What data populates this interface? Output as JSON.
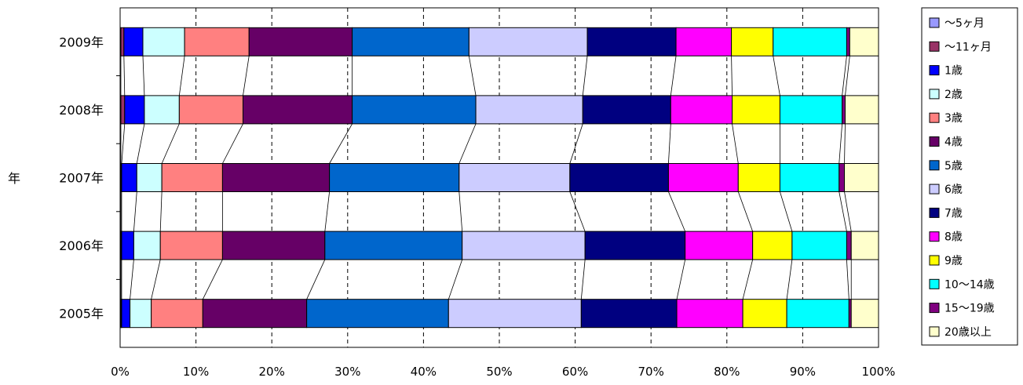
{
  "chart_data": {
    "type": "bar",
    "orientation": "horizontal",
    "stacked": "percent",
    "title": "",
    "xlabel": "",
    "ylabel": "年",
    "xlim": [
      0,
      100
    ],
    "x_ticks": [
      "0%",
      "10%",
      "20%",
      "30%",
      "40%",
      "50%",
      "60%",
      "70%",
      "80%",
      "90%",
      "100%"
    ],
    "grid": "vertical-dashed",
    "legend_position": "right",
    "categories": [
      "2009年",
      "2008年",
      "2007年",
      "2006年",
      "2005年"
    ],
    "series": [
      {
        "name": "～5ヶ月",
        "color": "#9999FF",
        "values": [
          0.1,
          0.1,
          0.1,
          0.1,
          0.1
        ]
      },
      {
        "name": "～11ヶ月",
        "color": "#993366",
        "values": [
          0.4,
          0.5,
          0.1,
          0.1,
          0.1
        ]
      },
      {
        "name": "1歳",
        "color": "#0000FF",
        "values": [
          2.5,
          2.6,
          2.0,
          1.6,
          1.1
        ]
      },
      {
        "name": "2歳",
        "color": "#CCFFFF",
        "values": [
          5.5,
          4.6,
          3.3,
          3.5,
          2.8
        ]
      },
      {
        "name": "3歳",
        "color": "#FF8080",
        "values": [
          8.5,
          8.4,
          8.0,
          8.2,
          6.8
        ]
      },
      {
        "name": "4歳",
        "color": "#660066",
        "values": [
          13.6,
          14.4,
          14.1,
          13.5,
          13.7
        ]
      },
      {
        "name": "5歳",
        "color": "#0066CC",
        "values": [
          15.4,
          16.3,
          17.1,
          18.1,
          18.7
        ]
      },
      {
        "name": "6歳",
        "color": "#CCCCFF",
        "values": [
          15.6,
          14.1,
          14.6,
          16.2,
          17.5
        ]
      },
      {
        "name": "7歳",
        "color": "#000080",
        "values": [
          11.7,
          11.6,
          13.0,
          13.2,
          12.6
        ]
      },
      {
        "name": "8歳",
        "color": "#FF00FF",
        "values": [
          7.3,
          8.1,
          9.2,
          8.9,
          8.7
        ]
      },
      {
        "name": "9歳",
        "color": "#FFFF00",
        "values": [
          5.5,
          6.3,
          5.5,
          5.2,
          5.8
        ]
      },
      {
        "name": "10～14歳",
        "color": "#00FFFF",
        "values": [
          9.7,
          8.2,
          7.8,
          7.2,
          8.2
        ]
      },
      {
        "name": "15～19歳",
        "color": "#800080",
        "values": [
          0.4,
          0.4,
          0.7,
          0.6,
          0.3
        ]
      },
      {
        "name": "20歳以上",
        "color": "#FFFFCC",
        "values": [
          3.8,
          4.4,
          4.5,
          3.6,
          3.6
        ]
      }
    ]
  }
}
